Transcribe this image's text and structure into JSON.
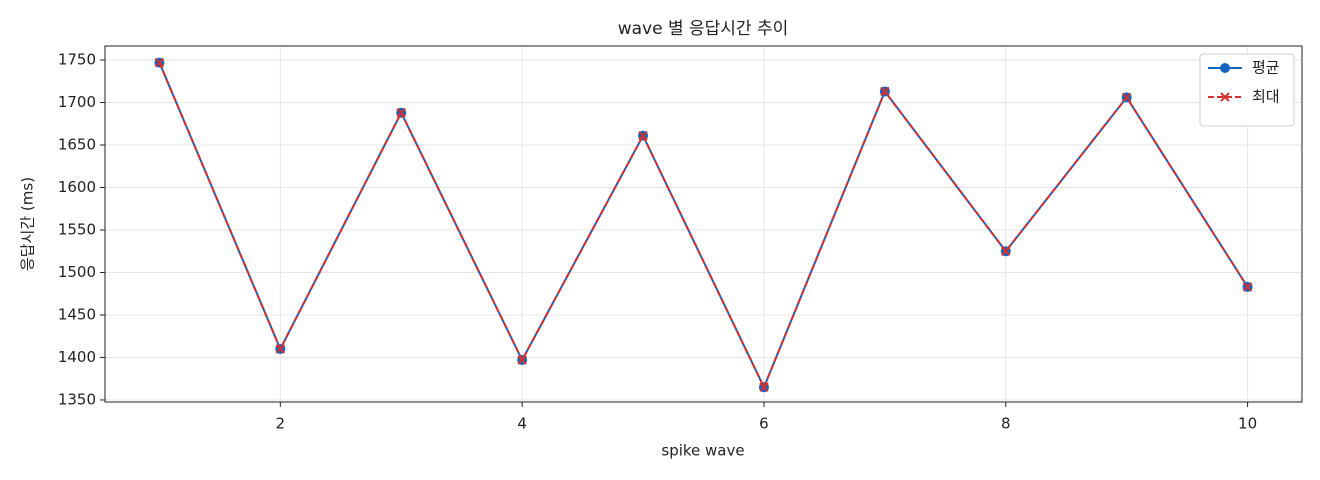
{
  "chart_data": {
    "type": "line",
    "title": "wave 별 응답시간 추이",
    "xlabel": "spike wave",
    "ylabel": "응답시간 (ms)",
    "x": [
      1,
      2,
      3,
      4,
      5,
      6,
      7,
      8,
      9,
      10
    ],
    "series": [
      {
        "name": "평균",
        "color": "#1565c0",
        "marker": "o",
        "dash": false,
        "values": [
          1747,
          1410,
          1688,
          1397,
          1661,
          1365,
          1713,
          1525,
          1706,
          1483
        ]
      },
      {
        "name": "최대",
        "color": "#d32f2f",
        "marker": "x",
        "dash": true,
        "values": [
          1747,
          1410,
          1688,
          1397,
          1661,
          1365,
          1713,
          1525,
          1706,
          1483
        ]
      }
    ],
    "xlim": [
      0.55,
      10.45
    ],
    "ylim": [
      1347.6,
      1766.5
    ],
    "xticks": [
      2,
      4,
      6,
      8,
      10
    ],
    "yticks": [
      1350,
      1400,
      1450,
      1500,
      1550,
      1600,
      1650,
      1700,
      1750
    ],
    "grid": true,
    "legend": "upper right"
  }
}
